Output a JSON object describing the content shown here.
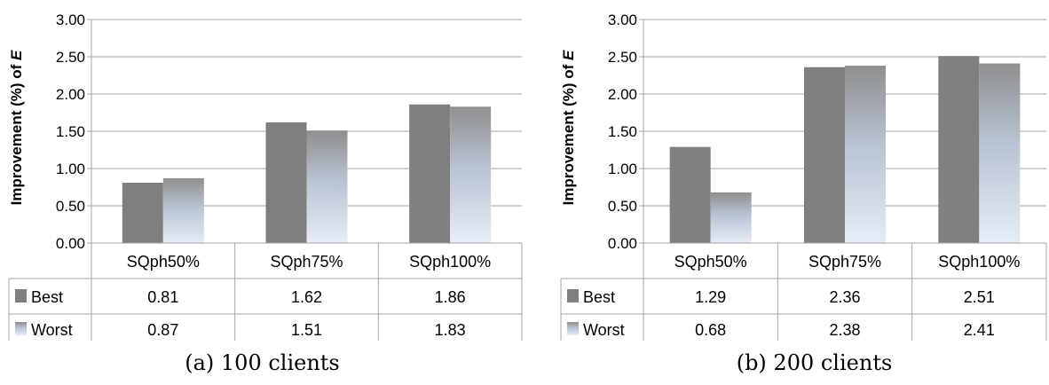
{
  "charts": [
    {
      "caption": "(a) 100 clients",
      "chart_data": {
        "type": "bar",
        "categories": [
          "SQph50%",
          "SQph75%",
          "SQph100%"
        ],
        "series": [
          {
            "name": "Best",
            "values": [
              0.81,
              1.62,
              1.86
            ],
            "color": "#7f7f7f"
          },
          {
            "name": "Worst",
            "values": [
              0.87,
              1.51,
              1.83
            ],
            "color": "gradient-gray-to-lightblue"
          }
        ],
        "ylabel": "Improvement (%) of E",
        "ylim": [
          0,
          3
        ],
        "yticks": [
          "0.00",
          "0.50",
          "1.00",
          "1.50",
          "2.00",
          "2.50",
          "3.00"
        ],
        "data_table": true,
        "legend": "in data table"
      }
    },
    {
      "caption": "(b) 200 clients",
      "chart_data": {
        "type": "bar",
        "categories": [
          "SQph50%",
          "SQph75%",
          "SQph100%"
        ],
        "series": [
          {
            "name": "Best",
            "values": [
              1.29,
              2.36,
              2.51
            ],
            "color": "#7f7f7f"
          },
          {
            "name": "Worst",
            "values": [
              0.68,
              2.38,
              2.41
            ],
            "color": "gradient-gray-to-lightblue"
          }
        ],
        "ylabel": "Improvement (%) of E",
        "ylim": [
          0,
          3
        ],
        "yticks": [
          "0.00",
          "0.50",
          "1.00",
          "1.50",
          "2.00",
          "2.50",
          "3.00"
        ],
        "data_table": true,
        "legend": "in data table"
      }
    }
  ]
}
